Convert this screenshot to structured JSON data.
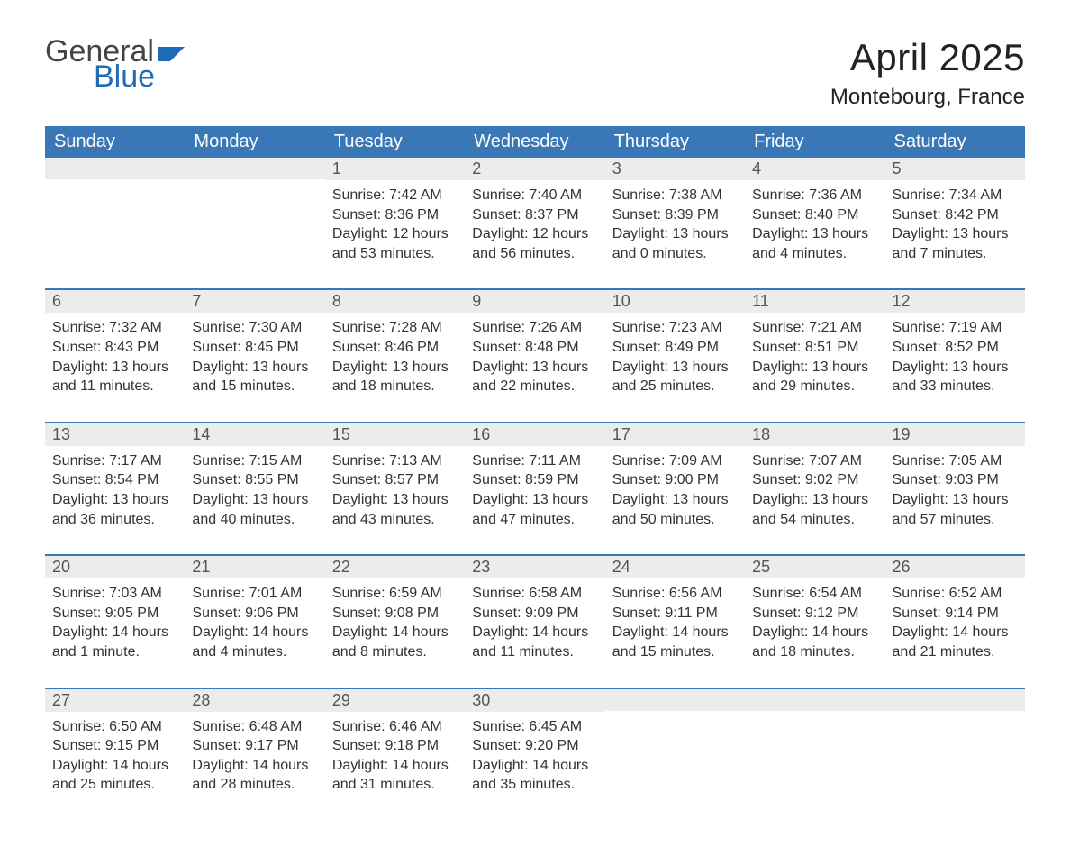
{
  "logo": {
    "text1": "General",
    "text2": "Blue",
    "flag_color": "#1f6bb6"
  },
  "header": {
    "month_title": "April 2025",
    "location": "Montebourg, France"
  },
  "colors": {
    "header_bg": "#3a77b7",
    "header_text": "#ffffff",
    "daynum_bg": "#ececec",
    "week_border": "#3a77b7",
    "body_text": "#333333"
  },
  "day_headers": [
    "Sunday",
    "Monday",
    "Tuesday",
    "Wednesday",
    "Thursday",
    "Friday",
    "Saturday"
  ],
  "weeks": [
    [
      {
        "n": "",
        "sunrise": "",
        "sunset": "",
        "daylight": ""
      },
      {
        "n": "",
        "sunrise": "",
        "sunset": "",
        "daylight": ""
      },
      {
        "n": "1",
        "sunrise": "Sunrise: 7:42 AM",
        "sunset": "Sunset: 8:36 PM",
        "daylight": "Daylight: 12 hours and 53 minutes."
      },
      {
        "n": "2",
        "sunrise": "Sunrise: 7:40 AM",
        "sunset": "Sunset: 8:37 PM",
        "daylight": "Daylight: 12 hours and 56 minutes."
      },
      {
        "n": "3",
        "sunrise": "Sunrise: 7:38 AM",
        "sunset": "Sunset: 8:39 PM",
        "daylight": "Daylight: 13 hours and 0 minutes."
      },
      {
        "n": "4",
        "sunrise": "Sunrise: 7:36 AM",
        "sunset": "Sunset: 8:40 PM",
        "daylight": "Daylight: 13 hours and 4 minutes."
      },
      {
        "n": "5",
        "sunrise": "Sunrise: 7:34 AM",
        "sunset": "Sunset: 8:42 PM",
        "daylight": "Daylight: 13 hours and 7 minutes."
      }
    ],
    [
      {
        "n": "6",
        "sunrise": "Sunrise: 7:32 AM",
        "sunset": "Sunset: 8:43 PM",
        "daylight": "Daylight: 13 hours and 11 minutes."
      },
      {
        "n": "7",
        "sunrise": "Sunrise: 7:30 AM",
        "sunset": "Sunset: 8:45 PM",
        "daylight": "Daylight: 13 hours and 15 minutes."
      },
      {
        "n": "8",
        "sunrise": "Sunrise: 7:28 AM",
        "sunset": "Sunset: 8:46 PM",
        "daylight": "Daylight: 13 hours and 18 minutes."
      },
      {
        "n": "9",
        "sunrise": "Sunrise: 7:26 AM",
        "sunset": "Sunset: 8:48 PM",
        "daylight": "Daylight: 13 hours and 22 minutes."
      },
      {
        "n": "10",
        "sunrise": "Sunrise: 7:23 AM",
        "sunset": "Sunset: 8:49 PM",
        "daylight": "Daylight: 13 hours and 25 minutes."
      },
      {
        "n": "11",
        "sunrise": "Sunrise: 7:21 AM",
        "sunset": "Sunset: 8:51 PM",
        "daylight": "Daylight: 13 hours and 29 minutes."
      },
      {
        "n": "12",
        "sunrise": "Sunrise: 7:19 AM",
        "sunset": "Sunset: 8:52 PM",
        "daylight": "Daylight: 13 hours and 33 minutes."
      }
    ],
    [
      {
        "n": "13",
        "sunrise": "Sunrise: 7:17 AM",
        "sunset": "Sunset: 8:54 PM",
        "daylight": "Daylight: 13 hours and 36 minutes."
      },
      {
        "n": "14",
        "sunrise": "Sunrise: 7:15 AM",
        "sunset": "Sunset: 8:55 PM",
        "daylight": "Daylight: 13 hours and 40 minutes."
      },
      {
        "n": "15",
        "sunrise": "Sunrise: 7:13 AM",
        "sunset": "Sunset: 8:57 PM",
        "daylight": "Daylight: 13 hours and 43 minutes."
      },
      {
        "n": "16",
        "sunrise": "Sunrise: 7:11 AM",
        "sunset": "Sunset: 8:59 PM",
        "daylight": "Daylight: 13 hours and 47 minutes."
      },
      {
        "n": "17",
        "sunrise": "Sunrise: 7:09 AM",
        "sunset": "Sunset: 9:00 PM",
        "daylight": "Daylight: 13 hours and 50 minutes."
      },
      {
        "n": "18",
        "sunrise": "Sunrise: 7:07 AM",
        "sunset": "Sunset: 9:02 PM",
        "daylight": "Daylight: 13 hours and 54 minutes."
      },
      {
        "n": "19",
        "sunrise": "Sunrise: 7:05 AM",
        "sunset": "Sunset: 9:03 PM",
        "daylight": "Daylight: 13 hours and 57 minutes."
      }
    ],
    [
      {
        "n": "20",
        "sunrise": "Sunrise: 7:03 AM",
        "sunset": "Sunset: 9:05 PM",
        "daylight": "Daylight: 14 hours and 1 minute."
      },
      {
        "n": "21",
        "sunrise": "Sunrise: 7:01 AM",
        "sunset": "Sunset: 9:06 PM",
        "daylight": "Daylight: 14 hours and 4 minutes."
      },
      {
        "n": "22",
        "sunrise": "Sunrise: 6:59 AM",
        "sunset": "Sunset: 9:08 PM",
        "daylight": "Daylight: 14 hours and 8 minutes."
      },
      {
        "n": "23",
        "sunrise": "Sunrise: 6:58 AM",
        "sunset": "Sunset: 9:09 PM",
        "daylight": "Daylight: 14 hours and 11 minutes."
      },
      {
        "n": "24",
        "sunrise": "Sunrise: 6:56 AM",
        "sunset": "Sunset: 9:11 PM",
        "daylight": "Daylight: 14 hours and 15 minutes."
      },
      {
        "n": "25",
        "sunrise": "Sunrise: 6:54 AM",
        "sunset": "Sunset: 9:12 PM",
        "daylight": "Daylight: 14 hours and 18 minutes."
      },
      {
        "n": "26",
        "sunrise": "Sunrise: 6:52 AM",
        "sunset": "Sunset: 9:14 PM",
        "daylight": "Daylight: 14 hours and 21 minutes."
      }
    ],
    [
      {
        "n": "27",
        "sunrise": "Sunrise: 6:50 AM",
        "sunset": "Sunset: 9:15 PM",
        "daylight": "Daylight: 14 hours and 25 minutes."
      },
      {
        "n": "28",
        "sunrise": "Sunrise: 6:48 AM",
        "sunset": "Sunset: 9:17 PM",
        "daylight": "Daylight: 14 hours and 28 minutes."
      },
      {
        "n": "29",
        "sunrise": "Sunrise: 6:46 AM",
        "sunset": "Sunset: 9:18 PM",
        "daylight": "Daylight: 14 hours and 31 minutes."
      },
      {
        "n": "30",
        "sunrise": "Sunrise: 6:45 AM",
        "sunset": "Sunset: 9:20 PM",
        "daylight": "Daylight: 14 hours and 35 minutes."
      },
      {
        "n": "",
        "sunrise": "",
        "sunset": "",
        "daylight": ""
      },
      {
        "n": "",
        "sunrise": "",
        "sunset": "",
        "daylight": ""
      },
      {
        "n": "",
        "sunrise": "",
        "sunset": "",
        "daylight": ""
      }
    ]
  ]
}
